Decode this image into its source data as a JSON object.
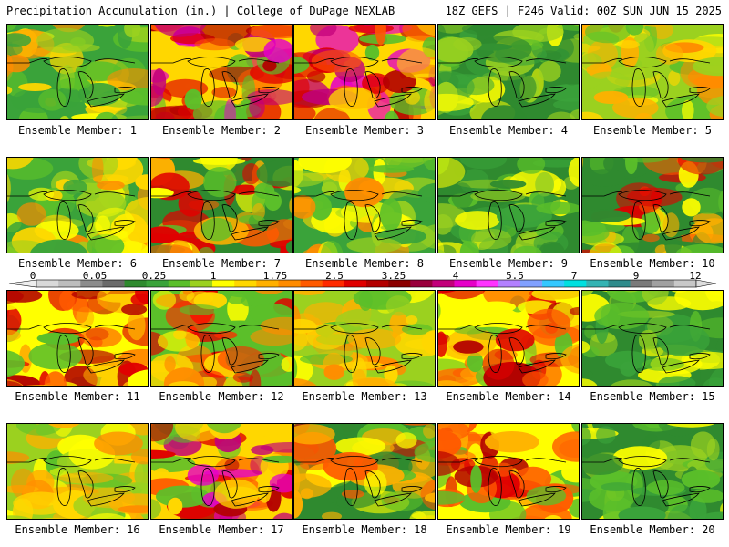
{
  "header": {
    "left_title": "Precipitation Accumulation (in.) | College of DuPage NEXLAB",
    "right_title": "18Z GEFS | F246 Valid: 00Z SUN JUN 15 2025"
  },
  "members": [
    {
      "label": "Ensemble Member: 1",
      "dominant": "green-yellow"
    },
    {
      "label": "Ensemble Member: 2",
      "dominant": "red-magenta"
    },
    {
      "label": "Ensemble Member: 3",
      "dominant": "red-magenta"
    },
    {
      "label": "Ensemble Member: 4",
      "dominant": "green"
    },
    {
      "label": "Ensemble Member: 5",
      "dominant": "yellow-orange"
    },
    {
      "label": "Ensemble Member: 6",
      "dominant": "green-yellow"
    },
    {
      "label": "Ensemble Member: 7",
      "dominant": "green-red"
    },
    {
      "label": "Ensemble Member: 8",
      "dominant": "green-yellow"
    },
    {
      "label": "Ensemble Member: 9",
      "dominant": "green"
    },
    {
      "label": "Ensemble Member: 10",
      "dominant": "green-red"
    },
    {
      "label": "Ensemble Member: 11",
      "dominant": "red"
    },
    {
      "label": "Ensemble Member: 12",
      "dominant": "yellow-red"
    },
    {
      "label": "Ensemble Member: 13",
      "dominant": "yellow-orange"
    },
    {
      "label": "Ensemble Member: 14",
      "dominant": "red"
    },
    {
      "label": "Ensemble Member: 15",
      "dominant": "green"
    },
    {
      "label": "Ensemble Member: 16",
      "dominant": "yellow-orange"
    },
    {
      "label": "Ensemble Member: 17",
      "dominant": "red-magenta"
    },
    {
      "label": "Ensemble Member: 18",
      "dominant": "green-red"
    },
    {
      "label": "Ensemble Member: 19",
      "dominant": "red"
    },
    {
      "label": "Ensemble Member: 20",
      "dominant": "green"
    }
  ],
  "colorbar": {
    "tick_labels": [
      "0",
      "0.05",
      "0.25",
      "1",
      "1.75",
      "2.5",
      "3.25",
      "4",
      "5.5",
      "7",
      "9",
      "12"
    ],
    "colors": [
      "#d9d9d9",
      "#bdbdbd",
      "#8c8c8c",
      "#6b6b6b",
      "#2f8a2f",
      "#3aa33a",
      "#5bbf2a",
      "#9bd11f",
      "#ffff00",
      "#ffd700",
      "#ffb000",
      "#ff8c00",
      "#ff5a00",
      "#ff2a00",
      "#e00000",
      "#b30000",
      "#8b0000",
      "#99003d",
      "#c2007a",
      "#e600c8",
      "#ff33ff",
      "#b380ff",
      "#80a0ff",
      "#33c8ff",
      "#00e0e0",
      "#33b3b3",
      "#2e8b8b",
      "#7a7a7a",
      "#a0a0a0",
      "#c8c8c8"
    ]
  }
}
